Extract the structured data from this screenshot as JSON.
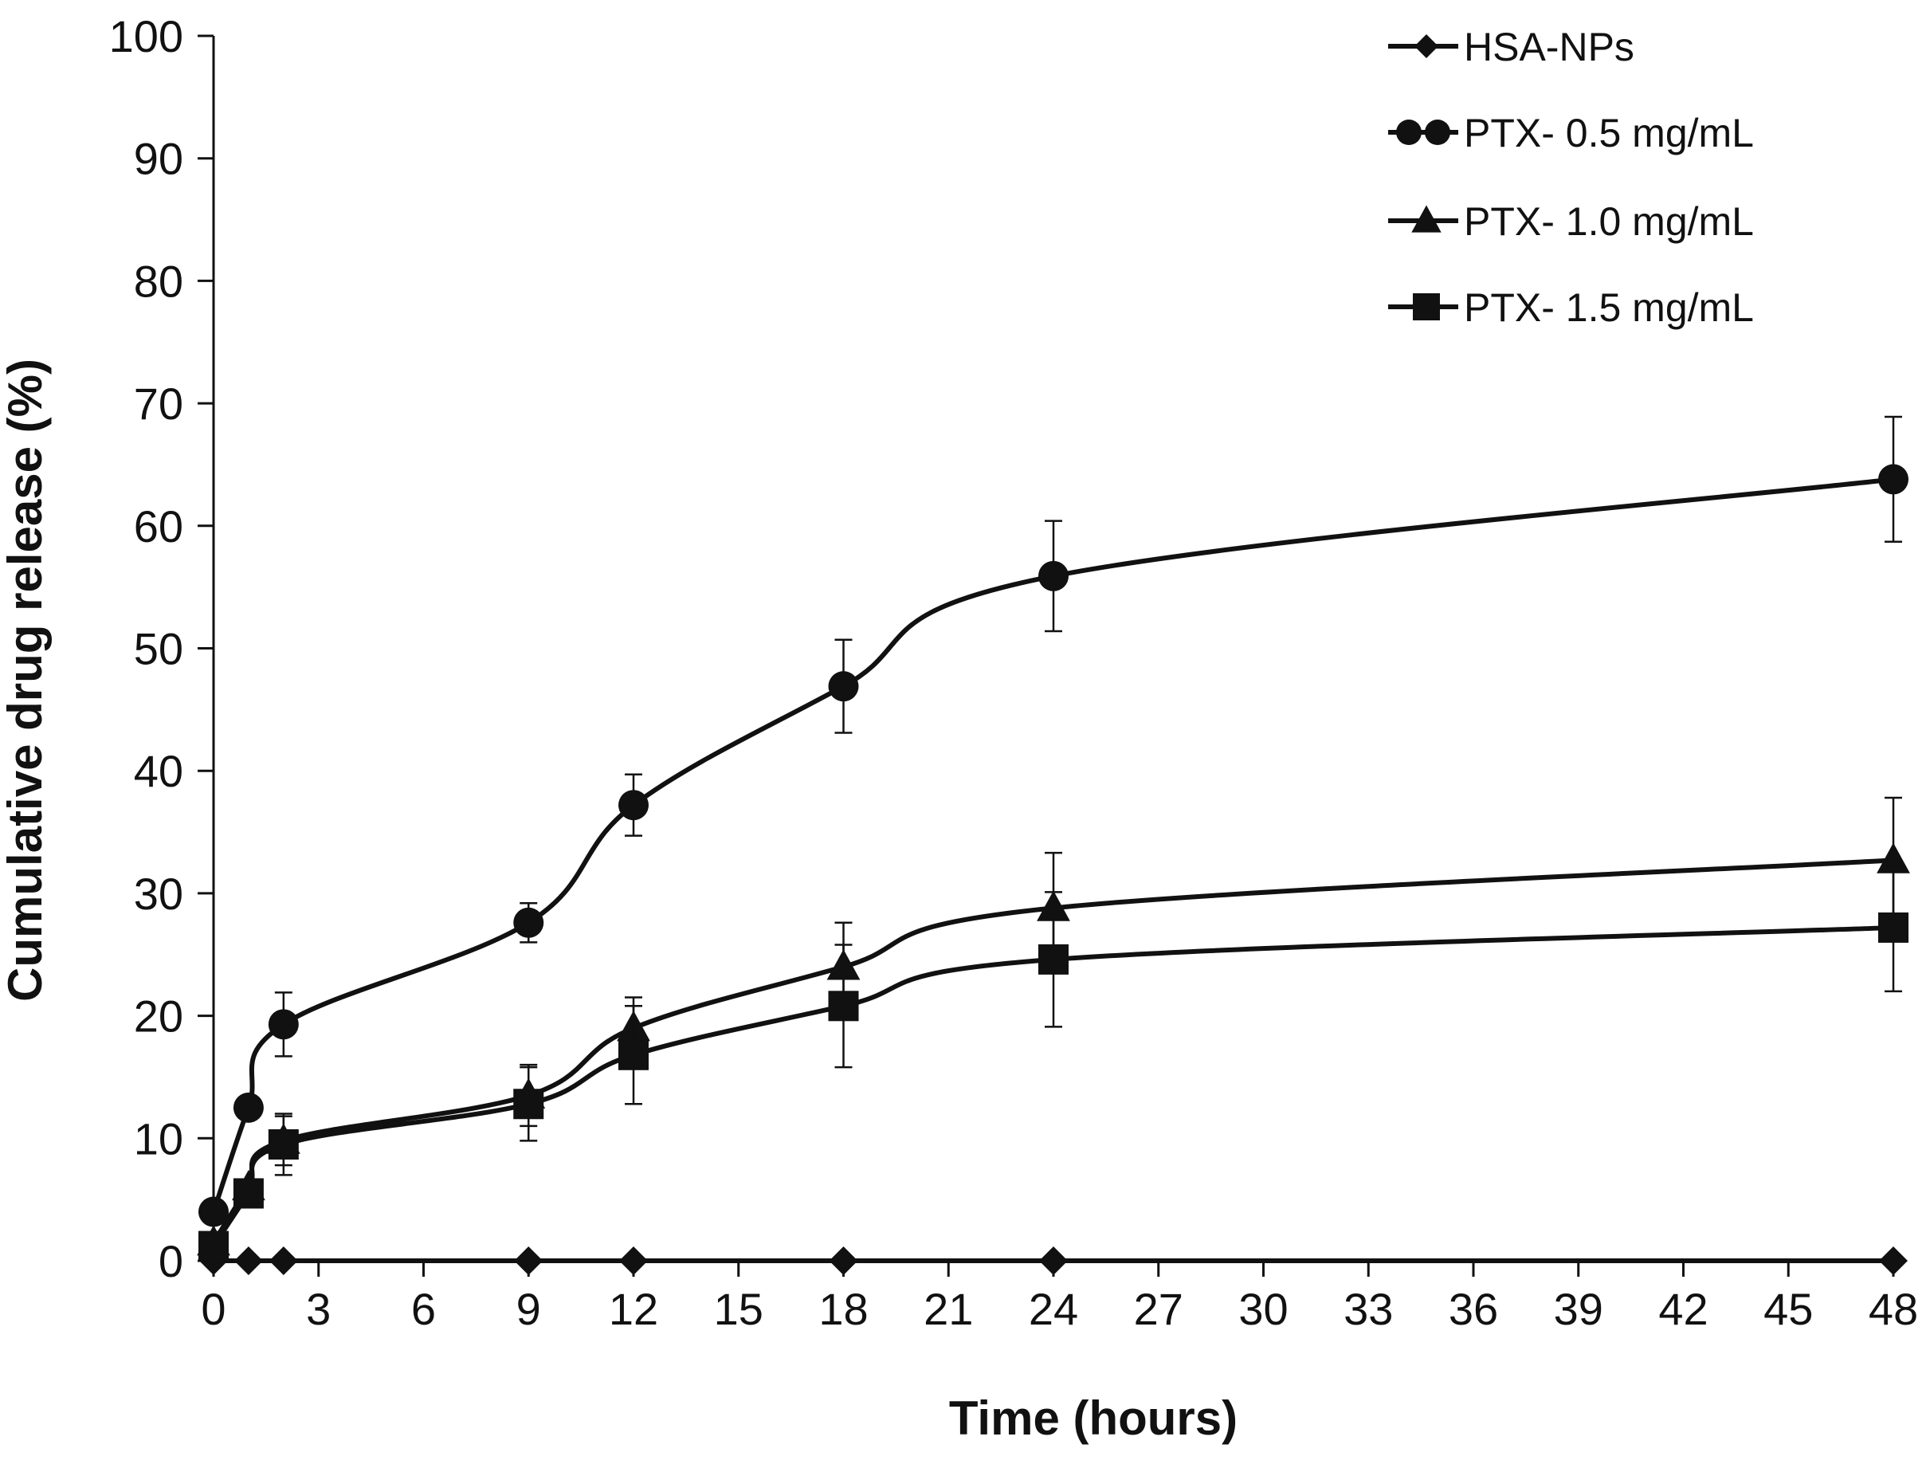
{
  "chart_data": {
    "type": "line",
    "title": "",
    "xlabel": "Time (hours)",
    "ylabel": "Cumulative drug release (%)",
    "xlim": [
      0,
      48
    ],
    "ylim": [
      0,
      100
    ],
    "x_ticks": [
      0,
      3,
      6,
      9,
      12,
      15,
      18,
      21,
      24,
      27,
      30,
      33,
      36,
      39,
      42,
      45,
      48
    ],
    "y_ticks": [
      0,
      10,
      20,
      30,
      40,
      50,
      60,
      70,
      80,
      90,
      100
    ],
    "grid": false,
    "legend_position": "top-right",
    "series": [
      {
        "name": "HSA-NPs",
        "marker": "diamond",
        "x": [
          0,
          1,
          2,
          9,
          12,
          18,
          24,
          48
        ],
        "y": [
          0,
          0,
          0,
          0,
          0,
          0,
          0,
          0
        ],
        "err": [
          0,
          0,
          0,
          0,
          0,
          0,
          0,
          0
        ]
      },
      {
        "name": "PTX- 0.5 mg/mL",
        "marker": "circle",
        "x": [
          0,
          1,
          2,
          9,
          12,
          18,
          24,
          48
        ],
        "y": [
          4,
          12.5,
          19.3,
          27.6,
          37.2,
          46.9,
          55.9,
          63.8
        ],
        "err": [
          0,
          0,
          2.6,
          1.6,
          2.5,
          3.8,
          4.5,
          5.1
        ]
      },
      {
        "name": "PTX- 1.0 mg/mL",
        "marker": "triangle",
        "x": [
          0,
          1,
          2,
          9,
          12,
          18,
          24,
          48
        ],
        "y": [
          1.5,
          6,
          9.8,
          13.5,
          19,
          24,
          28.8,
          32.7
        ],
        "err": [
          0,
          0,
          2,
          2.5,
          2.5,
          3.6,
          4.5,
          5.1
        ]
      },
      {
        "name": "PTX- 1.5 mg/mL",
        "marker": "square",
        "x": [
          0,
          1,
          2,
          9,
          12,
          18,
          24,
          48
        ],
        "y": [
          1.2,
          5.5,
          9.5,
          12.8,
          16.8,
          20.8,
          24.6,
          27.2
        ],
        "err": [
          0,
          0,
          2.5,
          3,
          4,
          5,
          5.5,
          5.2
        ]
      }
    ]
  }
}
